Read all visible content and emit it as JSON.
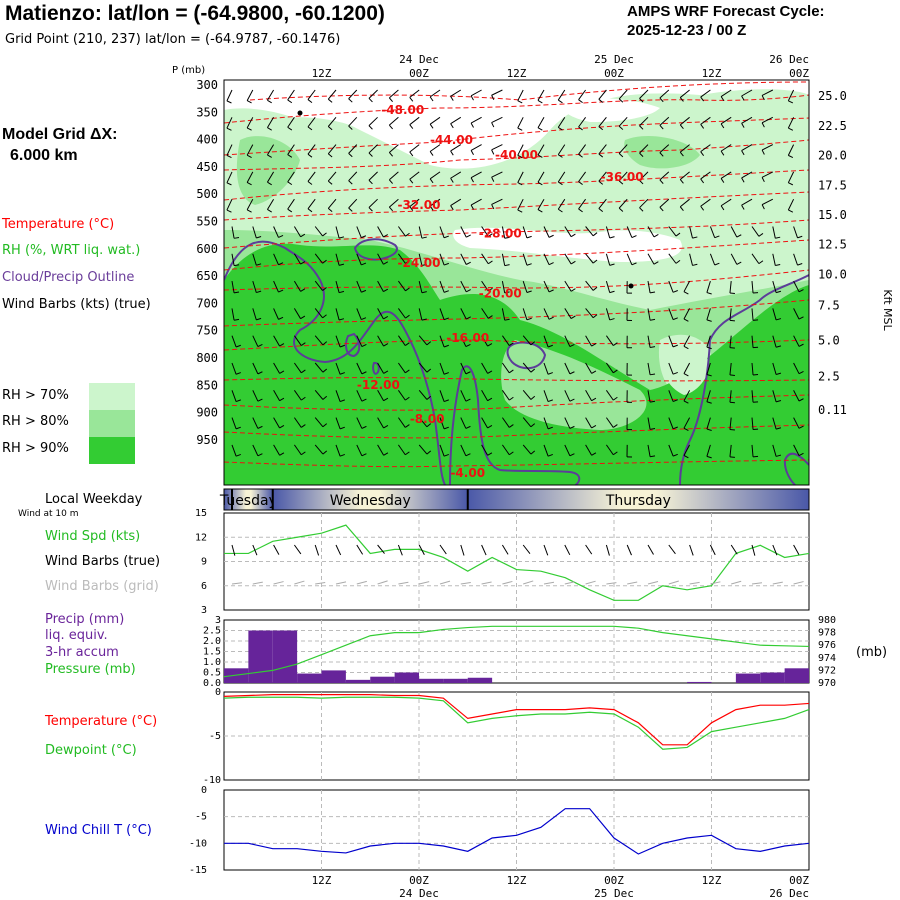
{
  "header": {
    "title": "Matienzo:  lat/lon = (-64.9800, -60.1200)",
    "subtitle": "Grid Point (210, 237) lat/lon = (-64.9787, -60.1476)",
    "forecast_line1": "AMPS WRF Forecast Cycle:",
    "forecast_line2": "2025-12-23 / 00  Z"
  },
  "left_panel": {
    "model_grid_label": "Model Grid ΔX:",
    "model_grid_value": "6.000 km",
    "temperature_label": "Temperature (°C)",
    "rh_label": "RH (%, WRT liq. wat.)",
    "cloud_label": "Cloud/Precip Outline",
    "wind_label": "Wind Barbs (kts) (true)",
    "rh_legend": [
      {
        "label": "RH > 70%",
        "color": "#ccf5cc"
      },
      {
        "label": "RH > 80%",
        "color": "#99e699"
      },
      {
        "label": "RH > 90%",
        "color": "#33cc33"
      }
    ],
    "local_weekday": "Local Weekday",
    "wind_at_10m": "Wind at 10 m",
    "wind_spd_label": "Wind Spd (kts)",
    "wind_barbs_true_label": "Wind Barbs (true)",
    "wind_barbs_grid_label": "Wind Barbs (grid)",
    "precip_label": "Precip (mm)",
    "liq_equiv_label": "liq. equiv.",
    "accum_label": "3-hr accum",
    "pressure_label": "Pressure (mb)",
    "temp2_label": "Temperature (°C)",
    "dewpoint_label": "Dewpoint (°C)",
    "wind_chill_label": "Wind Chill T (°C)"
  },
  "colors": {
    "temperature": "#ff0000",
    "rh_low": "#ccf5cc",
    "rh_mid": "#99e699",
    "rh_high": "#33cc33",
    "cloud_outline": "#5c3d99",
    "wind_spd": "#33cc33",
    "pressure": "#33cc33",
    "precip": "#66249a",
    "dewpoint": "#33cc33",
    "wind_chill": "#0000cc"
  },
  "chart_data": [
    {
      "type": "heatmap",
      "name": "vertical cross-section",
      "yaxis_label": "P (mb)",
      "pressure_levels": [
        "300",
        "350",
        "400",
        "450",
        "500",
        "550",
        "600",
        "650",
        "700",
        "750",
        "800",
        "850",
        "900",
        "950"
      ],
      "right_axis_label": "Kft MSL",
      "kft_ticks": [
        "25.0",
        "22.5",
        "20.0",
        "17.5",
        "15.0",
        "12.5",
        "10.0",
        "7.5",
        "5.0",
        "2.5",
        "0.11"
      ],
      "kft_at_pressure": [
        327,
        377,
        426,
        476,
        525,
        574,
        624,
        676,
        734,
        794,
        850
      ],
      "top_axis": {
        "hour_labels": [
          "12Z",
          "00Z",
          "12Z",
          "00Z",
          "12Z",
          "00Z"
        ],
        "date_labels": [
          "24 Dec",
          "25 Dec",
          "26 Dec"
        ]
      },
      "isotherm_labels": [
        {
          "text": "-48.00",
          "hour": 22,
          "p": 350
        },
        {
          "text": "-44.00",
          "hour": 28,
          "p": 400
        },
        {
          "text": "-40.00",
          "hour": 36,
          "p": 425
        },
        {
          "text": "-36.00",
          "hour": 49,
          "p": 462
        },
        {
          "text": "-32.00",
          "hour": 24,
          "p": 508
        },
        {
          "text": "-28.00",
          "hour": 34,
          "p": 556
        },
        {
          "text": "-24.00",
          "hour": 24,
          "p": 605
        },
        {
          "text": "-20.00",
          "hour": 34,
          "p": 656
        },
        {
          "text": "-16.00",
          "hour": 30,
          "p": 730
        },
        {
          "text": "-12.00",
          "hour": 19,
          "p": 808
        },
        {
          "text": "-8.00",
          "hour": 25,
          "p": 865
        },
        {
          "text": "-4.00",
          "hour": 30,
          "p": 955
        }
      ]
    },
    {
      "type": "table",
      "name": "local weekday",
      "days": [
        "Tuesday",
        "Wednesday",
        "Thursday"
      ]
    },
    {
      "type": "line",
      "name": "wind speed",
      "ylabel": "Wind Spd (kts)",
      "yticks": [
        "15",
        "12",
        "9",
        "6",
        "3"
      ],
      "ylim": [
        3,
        15
      ],
      "x_hours": [
        0,
        3,
        6,
        9,
        12,
        15,
        18,
        21,
        24,
        27,
        30,
        33,
        36,
        39,
        42,
        45,
        48,
        51,
        54,
        57,
        60,
        63,
        66,
        69,
        72
      ],
      "values": [
        10,
        10,
        11.5,
        12,
        12.5,
        13.5,
        10,
        10.5,
        10.5,
        9.5,
        7.8,
        9.5,
        8,
        7.8,
        7,
        5.5,
        4.2,
        4.2,
        6,
        5.5,
        6,
        10,
        11,
        9.5,
        10
      ]
    },
    {
      "type": "bar",
      "name": "precip",
      "ylabel": "Precip (mm)",
      "yticks": [
        "3",
        "2.5",
        "2.0",
        "1.5",
        "1.0",
        "0.5",
        "0.0"
      ],
      "ylim": [
        0,
        3
      ],
      "x_hours": [
        0,
        3,
        6,
        9,
        12,
        15,
        18,
        21,
        24,
        27,
        30,
        33,
        36,
        39,
        42,
        45,
        48,
        51,
        54,
        57,
        60,
        63,
        66,
        69
      ],
      "values": [
        0.7,
        2.5,
        2.5,
        0.45,
        0.6,
        0.15,
        0.3,
        0.5,
        0.2,
        0.2,
        0.25,
        0,
        0,
        0,
        0,
        0,
        0,
        0,
        0,
        0.05,
        0,
        0.45,
        0.5,
        0.7
      ]
    },
    {
      "type": "line",
      "name": "pressure",
      "ylabel": "Pressure (mb)",
      "yticks": [
        "980",
        "978",
        "976",
        "974",
        "972",
        "970"
      ],
      "ylim": [
        970,
        980
      ],
      "right_unit": "(mb)",
      "x_hours": [
        0,
        3,
        6,
        9,
        12,
        15,
        18,
        21,
        24,
        27,
        30,
        33,
        36,
        39,
        42,
        45,
        48,
        51,
        54,
        57,
        60,
        63,
        66,
        69,
        72
      ],
      "values": [
        971,
        971.5,
        972,
        973,
        974.5,
        976,
        977.5,
        978,
        978,
        978.5,
        978.8,
        979,
        979,
        979,
        979,
        979,
        979,
        978.7,
        978,
        977.5,
        977,
        976.5,
        976,
        975.9,
        975.8
      ]
    },
    {
      "type": "line",
      "name": "temperature and dewpoint",
      "yticks": [
        "0",
        "-5",
        "-10"
      ],
      "ylim": [
        -10,
        0
      ],
      "x_hours": [
        0,
        3,
        6,
        9,
        12,
        15,
        18,
        21,
        24,
        27,
        30,
        33,
        36,
        39,
        42,
        45,
        48,
        51,
        54,
        57,
        60,
        63,
        66,
        69,
        72
      ],
      "series": [
        {
          "name": "Temperature",
          "values": [
            -0.5,
            -0.4,
            -0.3,
            -0.3,
            -0.3,
            -0.3,
            -0.3,
            -0.4,
            -0.4,
            -0.7,
            -3.0,
            -2.5,
            -2.0,
            -2.0,
            -2.0,
            -1.8,
            -2.0,
            -3.5,
            -6.0,
            -6.0,
            -3.5,
            -2.0,
            -1.5,
            -1.5,
            -1.3
          ]
        },
        {
          "name": "Dewpoint",
          "values": [
            -0.7,
            -0.6,
            -0.6,
            -0.6,
            -0.7,
            -0.6,
            -0.6,
            -0.6,
            -0.7,
            -1.0,
            -3.5,
            -3.0,
            -2.7,
            -2.5,
            -2.5,
            -2.3,
            -2.5,
            -4.0,
            -6.5,
            -6.3,
            -4.5,
            -4.0,
            -3.5,
            -3.0,
            -2.0
          ]
        }
      ]
    },
    {
      "type": "line",
      "name": "wind chill",
      "yticks": [
        "0",
        "-5",
        "-10",
        "-15"
      ],
      "ylim": [
        -15,
        0
      ],
      "x_hours": [
        0,
        3,
        6,
        9,
        12,
        15,
        18,
        21,
        24,
        27,
        30,
        33,
        36,
        39,
        42,
        45,
        48,
        51,
        54,
        57,
        60,
        63,
        66,
        69,
        72
      ],
      "values": [
        -10,
        -10,
        -11,
        -11,
        -11.5,
        -11.8,
        -10.5,
        -10,
        -10,
        -10.5,
        -11.5,
        -9,
        -8.5,
        -7,
        -3.5,
        -3.5,
        -9,
        -12,
        -10,
        -9,
        -8.5,
        -11,
        -11.5,
        -10.5,
        -10
      ],
      "xaxis": {
        "hour_labels": [
          "12Z",
          "00Z",
          "12Z",
          "00Z",
          "12Z",
          "00Z"
        ],
        "date_labels": [
          "24 Dec",
          "25 Dec",
          "26 Dec"
        ]
      }
    }
  ]
}
